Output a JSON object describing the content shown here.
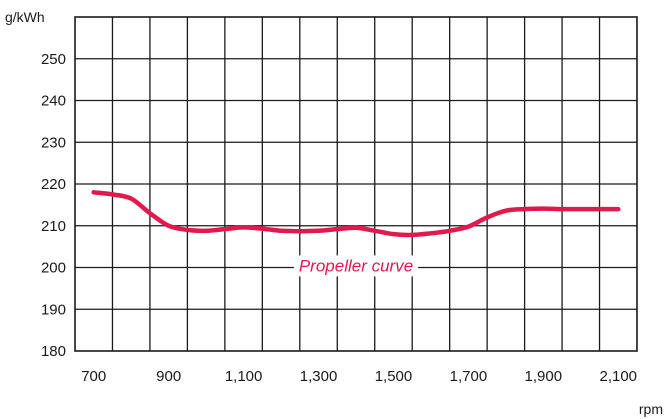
{
  "chart_data": {
    "type": "line",
    "title": "",
    "ylabel": "g/kWh",
    "xlabel": "rpm",
    "xlim": [
      650,
      2150
    ],
    "ylim": [
      180,
      260
    ],
    "grid": true,
    "x_grid_step": 100,
    "y_grid_step": 10,
    "x_ticks": [
      700,
      900,
      1100,
      1300,
      1500,
      1700,
      1900,
      2100
    ],
    "x_tick_labels": [
      "700",
      "900",
      "1,100",
      "1,300",
      "1,500",
      "1,700",
      "1,900",
      "2,100"
    ],
    "y_ticks": [
      180,
      190,
      200,
      210,
      220,
      230,
      240,
      250
    ],
    "y_tick_labels": [
      "180",
      "190",
      "200",
      "210",
      "220",
      "230",
      "240",
      "250"
    ],
    "series": [
      {
        "name": "Propeller curve",
        "color": "#e0194f",
        "x": [
          700,
          750,
          800,
          850,
          900,
          950,
          1000,
          1050,
          1100,
          1150,
          1200,
          1250,
          1300,
          1350,
          1400,
          1450,
          1500,
          1550,
          1600,
          1650,
          1700,
          1750,
          1800,
          1850,
          1900,
          1950,
          2000,
          2050,
          2100
        ],
        "y": [
          218,
          217.5,
          216.5,
          213,
          210,
          209,
          208.8,
          209.2,
          209.6,
          209.3,
          208.8,
          208.7,
          208.8,
          209.2,
          209.5,
          208.8,
          208,
          207.8,
          208.2,
          208.8,
          209.8,
          212,
          213.6,
          214,
          214.1,
          214,
          214,
          214,
          214
        ]
      }
    ],
    "annotations": [
      {
        "text": "Propeller curve",
        "x": 1400,
        "y": 200.5
      }
    ]
  }
}
